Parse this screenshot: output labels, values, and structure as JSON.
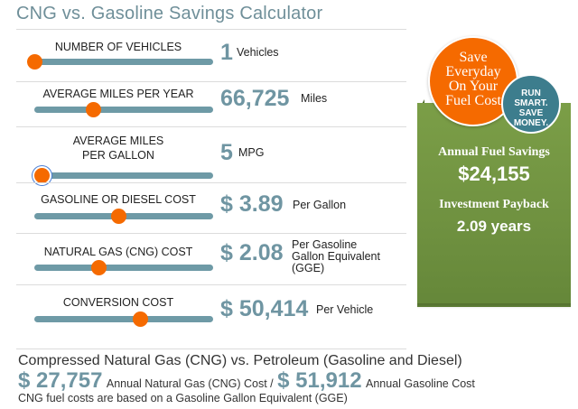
{
  "page": {
    "title": "CNG vs. Gasoline Savings Calculator"
  },
  "inputs": [
    {
      "label": "NUMBER OF VEHICLES",
      "value": "1",
      "unit": "Vehicles",
      "slider_fraction": 0.0
    },
    {
      "label": "AVERAGE MILES PER YEAR",
      "value": "66,725",
      "unit": "Miles",
      "slider_fraction": 0.33
    },
    {
      "label": "AVERAGE MILES PER GALLON",
      "value": "5",
      "unit": "MPG",
      "slider_fraction": 0.04,
      "focused": true
    },
    {
      "label": "GASOLINE OR DIESEL COST",
      "value": "$ 3.89",
      "unit": "Per Gallon",
      "slider_fraction": 0.47
    },
    {
      "label": "NATURAL GAS (CNG) COST",
      "value": "$ 2.08",
      "unit": "Per Gasoline Gallon Equivalent (GGE)",
      "slider_fraction": 0.36
    },
    {
      "label": "CONVERSION COST",
      "value": "$ 50,414",
      "unit": "Per Vehicle",
      "slider_fraction": 0.59
    }
  ],
  "badges": {
    "orange": [
      "Save",
      "Everyday",
      "On Your",
      "Fuel Cost"
    ],
    "teal": [
      "RUN",
      "SMART.",
      "SAVE",
      "MONEY."
    ]
  },
  "results": {
    "savings_label": "Annual Fuel Savings",
    "savings_value": "$24,155",
    "payback_label": "Investment Payback",
    "payback_value": "2.09 years"
  },
  "summary": {
    "title": "Compressed Natural Gas (CNG) vs. Petroleum (Gasoline and Diesel)",
    "cng_cost": "$ 27,757",
    "cng_label": "Annual Natural Gas (CNG) Cost /",
    "gas_cost": "$ 51,912",
    "gas_label": "Annual Gasoline Cost",
    "note": "CNG fuel costs are based on a Gasoline Gallon Equivalent (GGE)"
  },
  "colors": {
    "accent_teal": "#6f95a2",
    "slider_track": "#6e9aa6",
    "slider_thumb": "#f56a00",
    "panel_green": "#6f9140",
    "badge_orange": "#f56a00",
    "badge_teal": "#3d7d8d"
  }
}
